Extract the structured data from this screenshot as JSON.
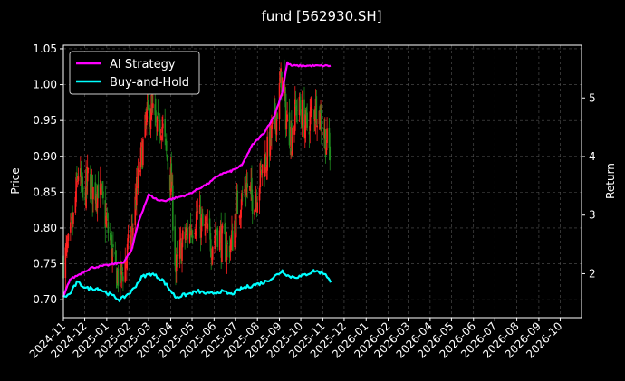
{
  "chart_data": {
    "type": "candlestick+line",
    "title": "fund [562930.SH]",
    "ylabel_left": "Price",
    "ylabel_right": "Return",
    "ylim_left": [
      0.675,
      1.055
    ],
    "ylim_right": [
      1.25,
      5.9
    ],
    "yticks_left": [
      "0.70",
      "0.75",
      "0.80",
      "0.85",
      "0.90",
      "0.95",
      "1.00",
      "1.05"
    ],
    "yticks_right": [
      "2",
      "3",
      "4",
      "5"
    ],
    "xtick_labels": [
      "2024-11",
      "2024-12",
      "2025-01",
      "2025-02",
      "2025-03",
      "2025-04",
      "2025-05",
      "2025-06",
      "2025-07",
      "2025-08",
      "2025-09",
      "2025-10",
      "2025-11",
      "2025-12",
      "2026-01",
      "2026-02",
      "2026-03",
      "2026-04",
      "2026-05",
      "2026-06",
      "2026-07",
      "2026-08",
      "2026-09",
      "2026-10"
    ],
    "x_start": "2024-11-01",
    "x_end": "2026-10-31",
    "grid": true,
    "legend_position": "top-left",
    "colors": {
      "up": "#ff2020",
      "down": "#1e8c1e",
      "ai": "#ff00ff",
      "bh": "#00ffff",
      "background": "#000000",
      "grid": "#555555"
    },
    "price_keypoints": [
      [
        "2024-11-01",
        0.755
      ],
      [
        "2024-11-08",
        0.77
      ],
      [
        "2024-11-15",
        0.81
      ],
      [
        "2024-11-22",
        0.88
      ],
      [
        "2024-11-29",
        0.84
      ],
      [
        "2024-12-06",
        0.87
      ],
      [
        "2024-12-13",
        0.85
      ],
      [
        "2024-12-20",
        0.86
      ],
      [
        "2024-12-27",
        0.83
      ],
      [
        "2025-01-06",
        0.78
      ],
      [
        "2025-01-13",
        0.74
      ],
      [
        "2025-01-20",
        0.73
      ],
      [
        "2025-01-27",
        0.75
      ],
      [
        "2025-02-05",
        0.79
      ],
      [
        "2025-02-12",
        0.85
      ],
      [
        "2025-02-19",
        0.9
      ],
      [
        "2025-02-26",
        0.95
      ],
      [
        "2025-03-05",
        0.97
      ],
      [
        "2025-03-12",
        0.93
      ],
      [
        "2025-03-19",
        0.95
      ],
      [
        "2025-03-26",
        0.9
      ],
      [
        "2025-04-02",
        0.86
      ],
      [
        "2025-04-08",
        0.74
      ],
      [
        "2025-04-15",
        0.77
      ],
      [
        "2025-04-22",
        0.79
      ],
      [
        "2025-04-29",
        0.8
      ],
      [
        "2025-05-08",
        0.82
      ],
      [
        "2025-05-15",
        0.8
      ],
      [
        "2025-05-22",
        0.79
      ],
      [
        "2025-05-29",
        0.78
      ],
      [
        "2025-06-05",
        0.8
      ],
      [
        "2025-06-12",
        0.78
      ],
      [
        "2025-06-19",
        0.77
      ],
      [
        "2025-06-26",
        0.78
      ],
      [
        "2025-07-03",
        0.83
      ],
      [
        "2025-07-10",
        0.84
      ],
      [
        "2025-07-17",
        0.86
      ],
      [
        "2025-07-24",
        0.84
      ],
      [
        "2025-07-31",
        0.85
      ],
      [
        "2025-08-07",
        0.88
      ],
      [
        "2025-08-14",
        0.9
      ],
      [
        "2025-08-21",
        0.93
      ],
      [
        "2025-08-28",
        0.96
      ],
      [
        "2025-09-04",
        1.01
      ],
      [
        "2025-09-11",
        0.95
      ],
      [
        "2025-09-18",
        0.93
      ],
      [
        "2025-09-25",
        0.97
      ],
      [
        "2025-10-02",
        0.96
      ],
      [
        "2025-10-09",
        0.94
      ],
      [
        "2025-10-16",
        0.96
      ],
      [
        "2025-10-23",
        0.97
      ],
      [
        "2025-10-30",
        0.95
      ],
      [
        "2025-11-06",
        0.92
      ],
      [
        "2025-11-12",
        0.9
      ]
    ],
    "series": [
      {
        "name": "AI Strategy",
        "axis": "right",
        "points": [
          [
            "2024-11-01",
            1.6
          ],
          [
            "2024-11-10",
            1.9
          ],
          [
            "2024-11-25",
            2.0
          ],
          [
            "2024-12-10",
            2.1
          ],
          [
            "2025-01-05",
            2.15
          ],
          [
            "2025-01-25",
            2.2
          ],
          [
            "2025-02-05",
            2.4
          ],
          [
            "2025-02-15",
            2.9
          ],
          [
            "2025-03-01",
            3.35
          ],
          [
            "2025-03-15",
            3.25
          ],
          [
            "2025-03-25",
            3.25
          ],
          [
            "2025-04-10",
            3.3
          ],
          [
            "2025-04-25",
            3.35
          ],
          [
            "2025-05-10",
            3.45
          ],
          [
            "2025-05-25",
            3.55
          ],
          [
            "2025-06-10",
            3.7
          ],
          [
            "2025-06-25",
            3.75
          ],
          [
            "2025-07-10",
            3.85
          ],
          [
            "2025-07-25",
            4.2
          ],
          [
            "2025-08-10",
            4.4
          ],
          [
            "2025-08-25",
            4.7
          ],
          [
            "2025-09-05",
            5.1
          ],
          [
            "2025-09-12",
            5.6
          ],
          [
            "2025-09-18",
            5.55
          ],
          [
            "2025-11-12",
            5.55
          ]
        ]
      },
      {
        "name": "Buy-and-Hold",
        "axis": "right",
        "points": [
          [
            "2024-11-01",
            1.6
          ],
          [
            "2024-11-10",
            1.65
          ],
          [
            "2024-11-20",
            1.85
          ],
          [
            "2024-12-05",
            1.75
          ],
          [
            "2024-12-20",
            1.75
          ],
          [
            "2025-01-05",
            1.65
          ],
          [
            "2025-01-20",
            1.55
          ],
          [
            "2025-02-05",
            1.7
          ],
          [
            "2025-02-20",
            1.95
          ],
          [
            "2025-03-05",
            2.0
          ],
          [
            "2025-03-20",
            1.9
          ],
          [
            "2025-04-08",
            1.6
          ],
          [
            "2025-04-25",
            1.65
          ],
          [
            "2025-05-10",
            1.7
          ],
          [
            "2025-05-25",
            1.65
          ],
          [
            "2025-06-10",
            1.7
          ],
          [
            "2025-06-25",
            1.65
          ],
          [
            "2025-07-10",
            1.75
          ],
          [
            "2025-07-25",
            1.8
          ],
          [
            "2025-08-10",
            1.85
          ],
          [
            "2025-08-25",
            1.95
          ],
          [
            "2025-09-05",
            2.05
          ],
          [
            "2025-09-15",
            1.95
          ],
          [
            "2025-10-01",
            1.95
          ],
          [
            "2025-10-20",
            2.05
          ],
          [
            "2025-11-05",
            2.0
          ],
          [
            "2025-11-12",
            1.85
          ]
        ]
      }
    ]
  }
}
